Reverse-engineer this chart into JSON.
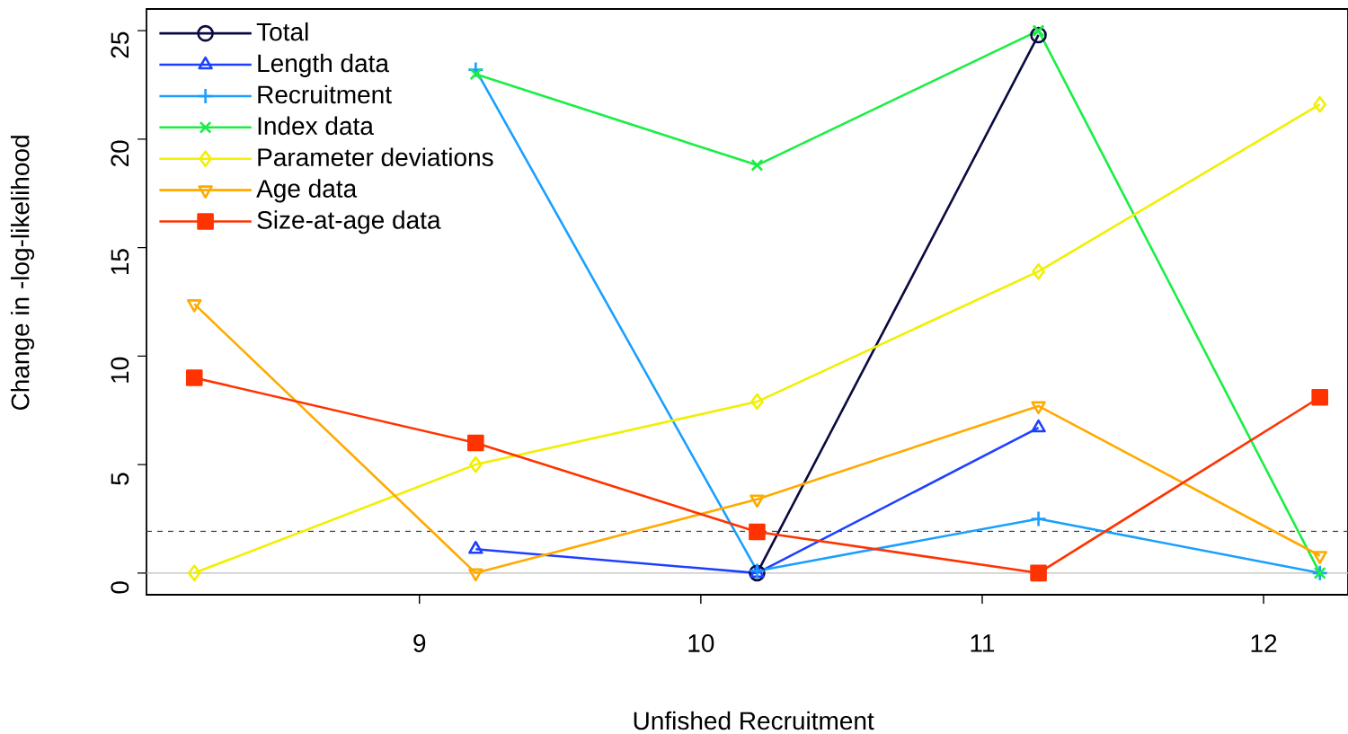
{
  "chart_data": {
    "type": "line",
    "xlabel": "Unfished Recruitment",
    "ylabel": "Change in -log-likelihood",
    "x": [
      8.2,
      9.2,
      10.2,
      11.2,
      12.2
    ],
    "series": [
      {
        "name": "Total",
        "color": "#0a0a40",
        "marker": "circle",
        "values": [
          null,
          null,
          0,
          24.8,
          null
        ]
      },
      {
        "name": "Length data",
        "color": "#1f3fff",
        "marker": "triangle",
        "values": [
          null,
          1.1,
          0,
          6.7,
          null
        ]
      },
      {
        "name": "Recruitment",
        "color": "#1a9fff",
        "marker": "plus",
        "values": [
          null,
          23.2,
          0.1,
          2.5,
          0
        ]
      },
      {
        "name": "Index data",
        "color": "#1aee44",
        "marker": "cross",
        "values": [
          null,
          23.0,
          18.8,
          25.0,
          0
        ]
      },
      {
        "name": "Parameter deviations",
        "color": "#f0f000",
        "marker": "diamond",
        "values": [
          0,
          5.0,
          7.9,
          13.9,
          21.6
        ]
      },
      {
        "name": "Age data",
        "color": "#ffaa00",
        "marker": "triangle_down",
        "values": [
          12.4,
          0,
          3.4,
          7.7,
          0.8
        ]
      },
      {
        "name": "Size-at-age data",
        "color": "#ff3300",
        "marker": "square",
        "values": [
          9.0,
          6.0,
          1.9,
          0,
          8.1
        ]
      }
    ],
    "xlim": [
      8.03,
      12.3
    ],
    "ylim": [
      -1.0,
      26.0
    ],
    "xticks": [
      9,
      10,
      11,
      12
    ],
    "yticks": [
      0,
      5,
      10,
      15,
      20,
      25
    ],
    "ref_lines": [
      {
        "axis": "y",
        "value": 0,
        "color": "#bebebe",
        "line_style": "solid"
      },
      {
        "axis": "y",
        "value": 1.92,
        "color": "#404040",
        "line_style": "dashed"
      }
    ],
    "legend": "top left"
  }
}
